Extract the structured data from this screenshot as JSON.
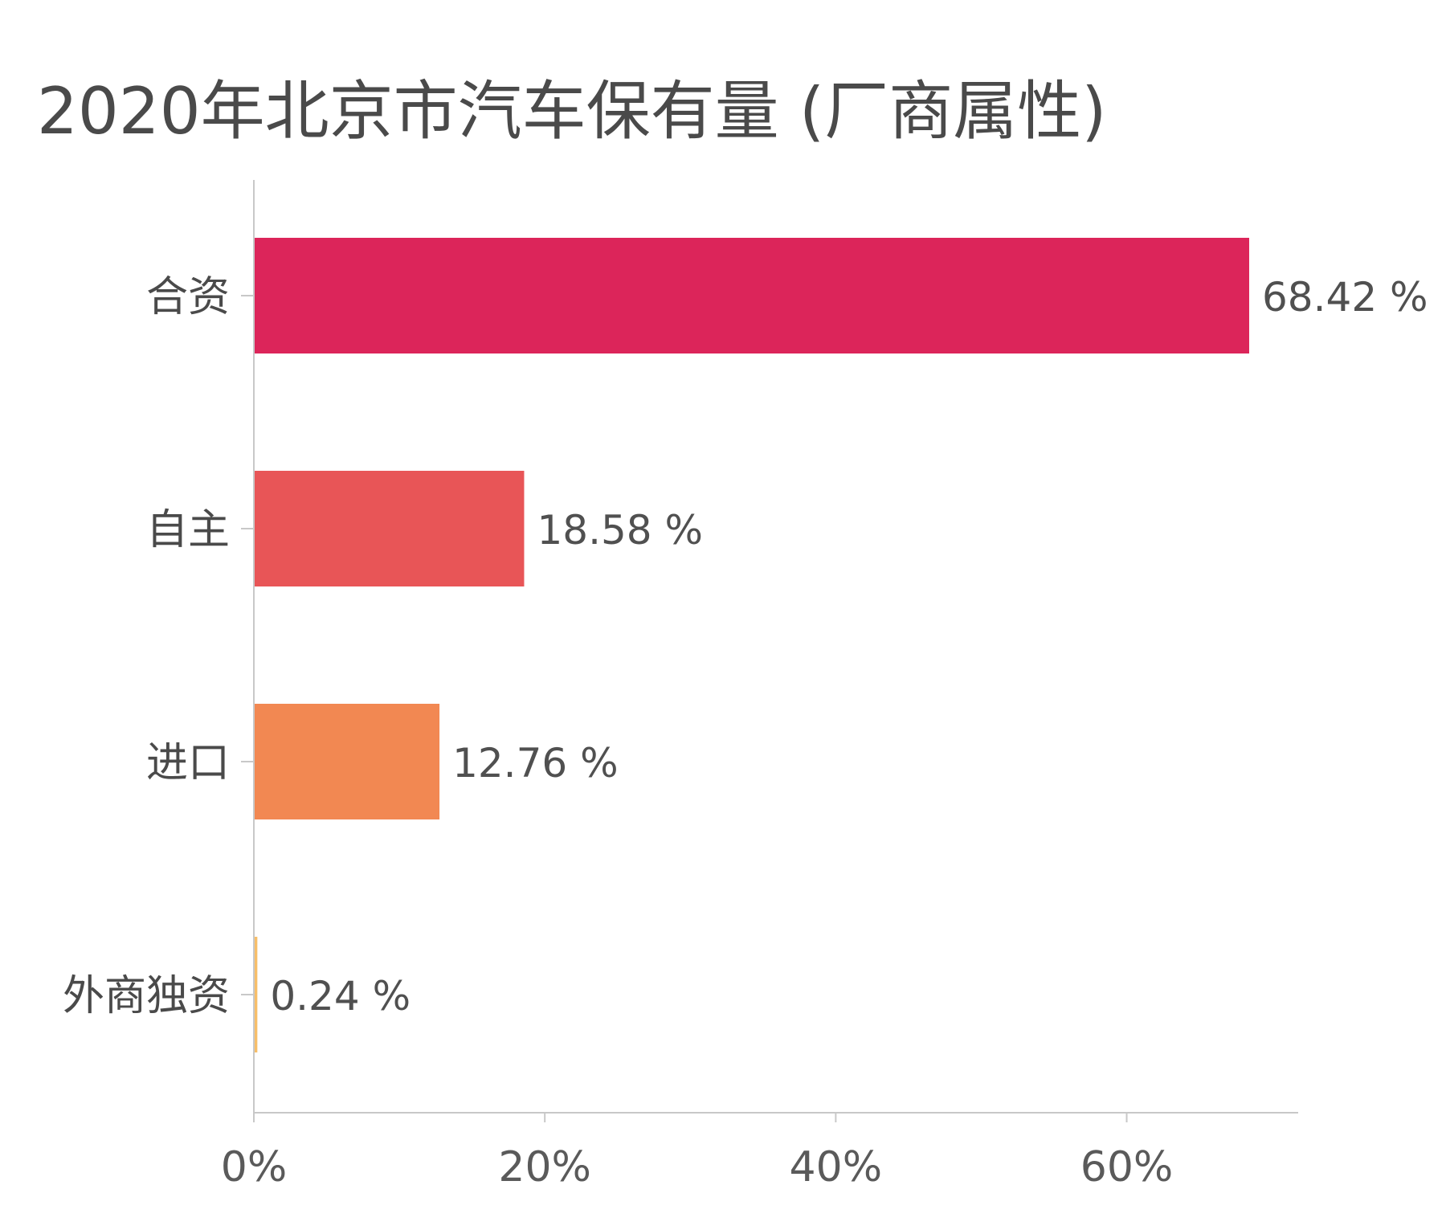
{
  "chart_data": {
    "type": "bar",
    "orientation": "horizontal",
    "title": "2020年北京市汽车保有量 (厂商属性)",
    "categories": [
      "合资",
      "自主",
      "进口",
      "外商独资"
    ],
    "values": [
      68.42,
      18.58,
      12.76,
      0.24
    ],
    "value_labels": [
      "68.42 %",
      "18.58 %",
      "12.76 %",
      "0.24 %"
    ],
    "colors": [
      "#dc255a",
      "#e85557",
      "#f28852",
      "#f7be68"
    ],
    "xlabel": "",
    "ylabel": "",
    "xlim": [
      0,
      72
    ],
    "xticks": [
      0,
      20,
      40,
      60
    ],
    "xtick_labels": [
      "0%",
      "20%",
      "40%",
      "60%"
    ],
    "grid": false,
    "legend": false
  }
}
